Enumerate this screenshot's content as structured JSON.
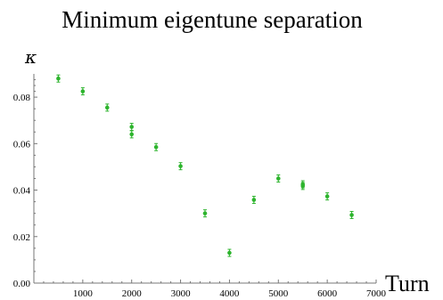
{
  "colors": {
    "marker": "#2db42d",
    "axis": "#777777"
  },
  "chart_data": {
    "type": "scatter",
    "title": "Minimum eigentune separation",
    "xlabel": "Turn",
    "ylabel": "κ",
    "xlim": [
      0,
      7000
    ],
    "ylim": [
      0,
      0.09
    ],
    "x_ticks": [
      0,
      1000,
      2000,
      3000,
      4000,
      5000,
      6000,
      7000
    ],
    "x_tick_labels": [
      "0",
      "1000",
      "2000",
      "3000",
      "4000",
      "5000",
      "6000",
      "7000"
    ],
    "y_ticks": [
      0,
      0.02,
      0.04,
      0.06,
      0.08
    ],
    "y_tick_labels": [
      "0.00",
      "0.02",
      "0.04",
      "0.06",
      "0.08"
    ],
    "grid": false,
    "error_bars": true,
    "points": [
      {
        "x": 500,
        "y": 0.088
      },
      {
        "x": 1000,
        "y": 0.0825
      },
      {
        "x": 1500,
        "y": 0.0755
      },
      {
        "x": 2000,
        "y": 0.0672
      },
      {
        "x": 2000,
        "y": 0.064
      },
      {
        "x": 2500,
        "y": 0.0585
      },
      {
        "x": 3000,
        "y": 0.0503
      },
      {
        "x": 3500,
        "y": 0.03
      },
      {
        "x": 4000,
        "y": 0.013
      },
      {
        "x": 4500,
        "y": 0.0358
      },
      {
        "x": 5000,
        "y": 0.045
      },
      {
        "x": 5500,
        "y": 0.0425
      },
      {
        "x": 5500,
        "y": 0.0418
      },
      {
        "x": 6000,
        "y": 0.0373
      },
      {
        "x": 6500,
        "y": 0.0293
      }
    ]
  }
}
